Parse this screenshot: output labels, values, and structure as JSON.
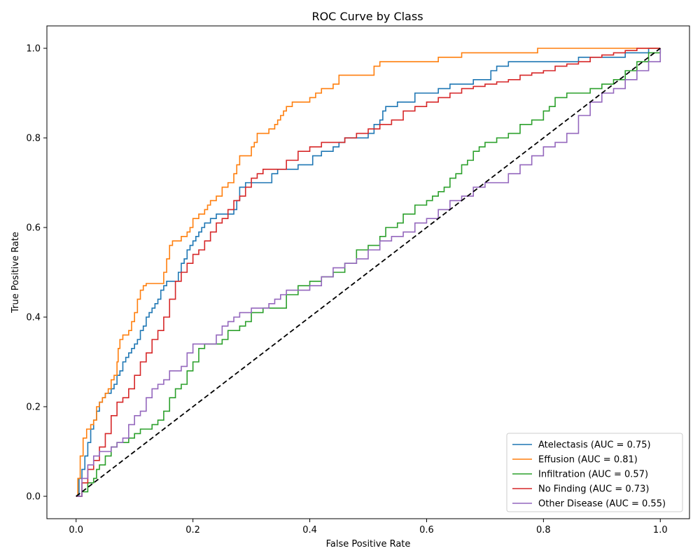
{
  "chart_data": {
    "type": "line",
    "title": "ROC Curve by Class",
    "xlabel": "False Positive Rate",
    "ylabel": "True Positive Rate",
    "xlim": [
      -0.05,
      1.05
    ],
    "ylim": [
      -0.05,
      1.05
    ],
    "xticks": [
      "0.0",
      "0.2",
      "0.4",
      "0.6",
      "0.8",
      "1.0"
    ],
    "yticks": [
      "0.0",
      "0.2",
      "0.4",
      "0.6",
      "0.8",
      "1.0"
    ],
    "legend_position": "lower-right",
    "diagonal": {
      "x": [
        0,
        1
      ],
      "y": [
        0,
        1
      ],
      "color": "#000000",
      "style": "dashed"
    },
    "series": [
      {
        "name": "Atelectasis (AUC = 0.75)",
        "color": "#1f77b4",
        "x": [
          0,
          0.005,
          0.01,
          0.015,
          0.02,
          0.025,
          0.03,
          0.035,
          0.04,
          0.045,
          0.05,
          0.06,
          0.065,
          0.07,
          0.075,
          0.08,
          0.085,
          0.09,
          0.095,
          0.1,
          0.105,
          0.11,
          0.115,
          0.12,
          0.125,
          0.13,
          0.135,
          0.14,
          0.145,
          0.15,
          0.155,
          0.16,
          0.17,
          0.175,
          0.18,
          0.185,
          0.19,
          0.195,
          0.2,
          0.205,
          0.21,
          0.215,
          0.22,
          0.23,
          0.24,
          0.25,
          0.26,
          0.27,
          0.275,
          0.28,
          0.29,
          0.3,
          0.32,
          0.335,
          0.345,
          0.36,
          0.38,
          0.4,
          0.405,
          0.42,
          0.44,
          0.45,
          0.46,
          0.48,
          0.5,
          0.51,
          0.52,
          0.525,
          0.53,
          0.55,
          0.56,
          0.58,
          0.6,
          0.62,
          0.64,
          0.66,
          0.68,
          0.7,
          0.71,
          0.72,
          0.74,
          0.78,
          0.8,
          0.82,
          0.84,
          0.86,
          0.9,
          0.92,
          0.94,
          0.96,
          0.98,
          1.0
        ],
        "y": [
          0,
          0.04,
          0.06,
          0.09,
          0.12,
          0.15,
          0.17,
          0.19,
          0.21,
          0.22,
          0.23,
          0.24,
          0.25,
          0.27,
          0.28,
          0.3,
          0.31,
          0.32,
          0.33,
          0.34,
          0.35,
          0.37,
          0.38,
          0.4,
          0.41,
          0.42,
          0.43,
          0.44,
          0.46,
          0.47,
          0.48,
          0.48,
          0.48,
          0.5,
          0.52,
          0.53,
          0.55,
          0.56,
          0.57,
          0.58,
          0.59,
          0.6,
          0.61,
          0.62,
          0.63,
          0.63,
          0.63,
          0.64,
          0.66,
          0.69,
          0.7,
          0.7,
          0.7,
          0.72,
          0.73,
          0.73,
          0.74,
          0.74,
          0.76,
          0.77,
          0.78,
          0.79,
          0.8,
          0.8,
          0.81,
          0.83,
          0.84,
          0.86,
          0.87,
          0.88,
          0.88,
          0.9,
          0.9,
          0.91,
          0.92,
          0.92,
          0.93,
          0.93,
          0.95,
          0.96,
          0.97,
          0.97,
          0.97,
          0.97,
          0.97,
          0.98,
          0.98,
          0.98,
          0.99,
          0.99,
          1.0,
          1.0
        ]
      },
      {
        "name": "Effusion (AUC = 0.81)",
        "color": "#ff7f0e",
        "x": [
          0,
          0.003,
          0.007,
          0.012,
          0.018,
          0.025,
          0.03,
          0.035,
          0.04,
          0.045,
          0.05,
          0.055,
          0.06,
          0.065,
          0.07,
          0.072,
          0.075,
          0.08,
          0.09,
          0.095,
          0.1,
          0.105,
          0.11,
          0.115,
          0.12,
          0.13,
          0.14,
          0.15,
          0.155,
          0.16,
          0.165,
          0.17,
          0.18,
          0.19,
          0.195,
          0.2,
          0.21,
          0.22,
          0.225,
          0.23,
          0.24,
          0.25,
          0.26,
          0.27,
          0.275,
          0.28,
          0.29,
          0.3,
          0.305,
          0.31,
          0.32,
          0.33,
          0.34,
          0.345,
          0.35,
          0.355,
          0.36,
          0.37,
          0.38,
          0.39,
          0.4,
          0.41,
          0.42,
          0.43,
          0.44,
          0.45,
          0.47,
          0.5,
          0.51,
          0.52,
          0.55,
          0.6,
          0.62,
          0.65,
          0.66,
          0.7,
          0.75,
          0.78,
          0.79,
          0.85,
          0.9,
          0.95,
          1.0
        ],
        "y": [
          0,
          0.04,
          0.09,
          0.13,
          0.15,
          0.16,
          0.17,
          0.2,
          0.21,
          0.22,
          0.23,
          0.24,
          0.26,
          0.27,
          0.3,
          0.33,
          0.35,
          0.36,
          0.37,
          0.39,
          0.41,
          0.44,
          0.46,
          0.47,
          0.475,
          0.475,
          0.475,
          0.5,
          0.53,
          0.56,
          0.57,
          0.57,
          0.58,
          0.59,
          0.6,
          0.62,
          0.63,
          0.64,
          0.65,
          0.66,
          0.67,
          0.69,
          0.7,
          0.72,
          0.74,
          0.76,
          0.76,
          0.78,
          0.79,
          0.81,
          0.81,
          0.82,
          0.83,
          0.84,
          0.85,
          0.86,
          0.87,
          0.88,
          0.88,
          0.88,
          0.89,
          0.9,
          0.91,
          0.91,
          0.92,
          0.94,
          0.94,
          0.94,
          0.96,
          0.97,
          0.97,
          0.97,
          0.98,
          0.98,
          0.99,
          0.99,
          0.99,
          0.99,
          1.0,
          1.0,
          1.0,
          1.0,
          1.0
        ]
      },
      {
        "name": "Infiltration (AUC = 0.57)",
        "color": "#2ca02c",
        "x": [
          0,
          0.01,
          0.02,
          0.03,
          0.035,
          0.04,
          0.05,
          0.06,
          0.07,
          0.08,
          0.09,
          0.1,
          0.11,
          0.12,
          0.13,
          0.14,
          0.15,
          0.16,
          0.17,
          0.18,
          0.19,
          0.2,
          0.21,
          0.22,
          0.24,
          0.25,
          0.26,
          0.28,
          0.29,
          0.3,
          0.32,
          0.34,
          0.36,
          0.38,
          0.4,
          0.42,
          0.44,
          0.46,
          0.48,
          0.5,
          0.52,
          0.53,
          0.55,
          0.56,
          0.58,
          0.6,
          0.61,
          0.62,
          0.63,
          0.64,
          0.65,
          0.66,
          0.67,
          0.68,
          0.69,
          0.7,
          0.72,
          0.74,
          0.76,
          0.78,
          0.8,
          0.81,
          0.82,
          0.84,
          0.86,
          0.88,
          0.9,
          0.92,
          0.93,
          0.94,
          0.96,
          0.98,
          1.0
        ],
        "y": [
          0,
          0.01,
          0.03,
          0.04,
          0.06,
          0.07,
          0.09,
          0.11,
          0.12,
          0.12,
          0.13,
          0.14,
          0.15,
          0.15,
          0.16,
          0.17,
          0.19,
          0.22,
          0.24,
          0.25,
          0.28,
          0.3,
          0.33,
          0.34,
          0.34,
          0.35,
          0.37,
          0.38,
          0.39,
          0.41,
          0.42,
          0.42,
          0.45,
          0.47,
          0.48,
          0.49,
          0.5,
          0.52,
          0.55,
          0.56,
          0.58,
          0.6,
          0.61,
          0.63,
          0.65,
          0.66,
          0.67,
          0.68,
          0.69,
          0.71,
          0.72,
          0.74,
          0.75,
          0.77,
          0.78,
          0.79,
          0.8,
          0.81,
          0.83,
          0.84,
          0.86,
          0.87,
          0.89,
          0.9,
          0.9,
          0.91,
          0.92,
          0.93,
          0.93,
          0.95,
          0.97,
          0.99,
          1.0
        ]
      },
      {
        "name": "No Finding (AUC = 0.73)",
        "color": "#d62728",
        "x": [
          0,
          0.01,
          0.02,
          0.03,
          0.04,
          0.05,
          0.06,
          0.07,
          0.08,
          0.09,
          0.1,
          0.11,
          0.12,
          0.13,
          0.14,
          0.15,
          0.16,
          0.17,
          0.18,
          0.19,
          0.2,
          0.21,
          0.22,
          0.23,
          0.24,
          0.25,
          0.26,
          0.27,
          0.28,
          0.29,
          0.3,
          0.31,
          0.32,
          0.34,
          0.36,
          0.38,
          0.4,
          0.42,
          0.44,
          0.46,
          0.48,
          0.5,
          0.52,
          0.54,
          0.56,
          0.58,
          0.6,
          0.62,
          0.64,
          0.66,
          0.68,
          0.7,
          0.72,
          0.74,
          0.76,
          0.78,
          0.8,
          0.82,
          0.84,
          0.86,
          0.88,
          0.9,
          0.92,
          0.94,
          0.96,
          0.98,
          1.0
        ],
        "y": [
          0,
          0.03,
          0.06,
          0.08,
          0.11,
          0.14,
          0.18,
          0.21,
          0.22,
          0.24,
          0.27,
          0.3,
          0.32,
          0.35,
          0.37,
          0.4,
          0.44,
          0.48,
          0.5,
          0.52,
          0.54,
          0.55,
          0.57,
          0.59,
          0.61,
          0.62,
          0.64,
          0.66,
          0.67,
          0.69,
          0.71,
          0.72,
          0.73,
          0.73,
          0.75,
          0.77,
          0.78,
          0.79,
          0.79,
          0.8,
          0.81,
          0.82,
          0.83,
          0.84,
          0.86,
          0.87,
          0.88,
          0.89,
          0.9,
          0.91,
          0.915,
          0.92,
          0.925,
          0.93,
          0.94,
          0.945,
          0.95,
          0.96,
          0.965,
          0.97,
          0.98,
          0.985,
          0.99,
          0.995,
          1.0,
          1.0,
          1.0
        ]
      },
      {
        "name": "Other Disease (AUC = 0.55)",
        "color": "#9467bd",
        "x": [
          0,
          0.01,
          0.02,
          0.03,
          0.04,
          0.05,
          0.06,
          0.07,
          0.08,
          0.09,
          0.1,
          0.11,
          0.12,
          0.13,
          0.14,
          0.15,
          0.16,
          0.17,
          0.18,
          0.19,
          0.2,
          0.21,
          0.22,
          0.23,
          0.24,
          0.25,
          0.26,
          0.27,
          0.28,
          0.29,
          0.3,
          0.31,
          0.32,
          0.33,
          0.34,
          0.35,
          0.36,
          0.38,
          0.4,
          0.42,
          0.44,
          0.46,
          0.48,
          0.5,
          0.52,
          0.54,
          0.56,
          0.58,
          0.6,
          0.62,
          0.64,
          0.66,
          0.68,
          0.7,
          0.72,
          0.74,
          0.76,
          0.78,
          0.8,
          0.82,
          0.84,
          0.86,
          0.88,
          0.9,
          0.92,
          0.94,
          0.96,
          0.98,
          1.0
        ],
        "y": [
          0,
          0.04,
          0.07,
          0.09,
          0.1,
          0.1,
          0.11,
          0.12,
          0.13,
          0.16,
          0.18,
          0.19,
          0.22,
          0.24,
          0.25,
          0.26,
          0.28,
          0.28,
          0.29,
          0.32,
          0.34,
          0.34,
          0.34,
          0.34,
          0.36,
          0.38,
          0.39,
          0.4,
          0.41,
          0.41,
          0.42,
          0.42,
          0.42,
          0.43,
          0.44,
          0.45,
          0.46,
          0.46,
          0.47,
          0.49,
          0.51,
          0.52,
          0.53,
          0.55,
          0.57,
          0.58,
          0.59,
          0.61,
          0.62,
          0.64,
          0.66,
          0.67,
          0.69,
          0.7,
          0.7,
          0.72,
          0.74,
          0.76,
          0.78,
          0.79,
          0.81,
          0.85,
          0.88,
          0.9,
          0.91,
          0.93,
          0.95,
          0.97,
          1.0
        ]
      }
    ]
  }
}
